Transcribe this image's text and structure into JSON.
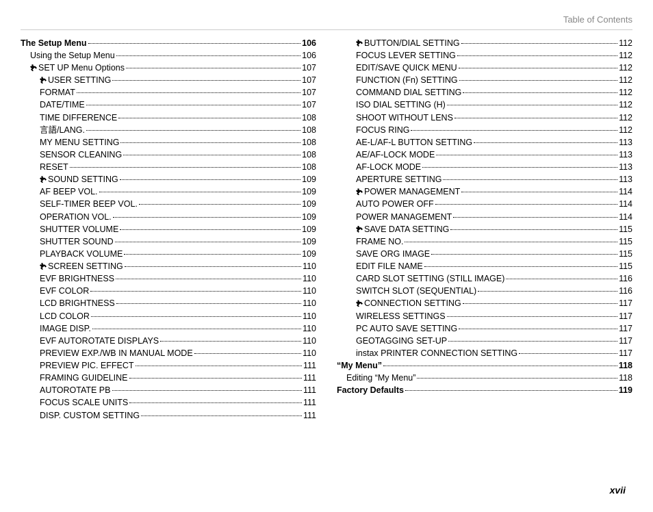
{
  "header": "Table of Contents",
  "footer_page": "xvii",
  "left_col": [
    {
      "label": "The Setup Menu",
      "page": 106,
      "bold": true,
      "indent": 0,
      "icon": false
    },
    {
      "label": "Using the Setup Menu",
      "page": 106,
      "bold": false,
      "indent": 1,
      "icon": false
    },
    {
      "label": "SET UP Menu Options",
      "page": 107,
      "bold": false,
      "indent": 1,
      "icon": true
    },
    {
      "label": "USER SETTING",
      "page": 107,
      "bold": false,
      "indent": 2,
      "icon": true
    },
    {
      "label": "FORMAT",
      "page": 107,
      "bold": false,
      "indent": 2,
      "icon": false
    },
    {
      "label": "DATE/TIME",
      "page": 107,
      "bold": false,
      "indent": 2,
      "icon": false
    },
    {
      "label": "TIME DIFFERENCE",
      "page": 108,
      "bold": false,
      "indent": 2,
      "icon": false
    },
    {
      "label": "言語/LANG.",
      "page": 108,
      "bold": false,
      "indent": 2,
      "icon": false
    },
    {
      "label": "MY MENU SETTING",
      "page": 108,
      "bold": false,
      "indent": 2,
      "icon": false
    },
    {
      "label": "SENSOR CLEANING",
      "page": 108,
      "bold": false,
      "indent": 2,
      "icon": false
    },
    {
      "label": "RESET",
      "page": 108,
      "bold": false,
      "indent": 2,
      "icon": false
    },
    {
      "label": "SOUND SETTING",
      "page": 109,
      "bold": false,
      "indent": 2,
      "icon": true
    },
    {
      "label": "AF BEEP VOL.",
      "page": 109,
      "bold": false,
      "indent": 2,
      "icon": false
    },
    {
      "label": "SELF-TIMER BEEP VOL.",
      "page": 109,
      "bold": false,
      "indent": 2,
      "icon": false
    },
    {
      "label": "OPERATION VOL.",
      "page": 109,
      "bold": false,
      "indent": 2,
      "icon": false
    },
    {
      "label": "SHUTTER VOLUME",
      "page": 109,
      "bold": false,
      "indent": 2,
      "icon": false
    },
    {
      "label": "SHUTTER SOUND",
      "page": 109,
      "bold": false,
      "indent": 2,
      "icon": false
    },
    {
      "label": "PLAYBACK VOLUME",
      "page": 109,
      "bold": false,
      "indent": 2,
      "icon": false
    },
    {
      "label": "SCREEN SETTING",
      "page": 110,
      "bold": false,
      "indent": 2,
      "icon": true
    },
    {
      "label": "EVF BRIGHTNESS",
      "page": 110,
      "bold": false,
      "indent": 2,
      "icon": false
    },
    {
      "label": "EVF COLOR",
      "page": 110,
      "bold": false,
      "indent": 2,
      "icon": false
    },
    {
      "label": "LCD BRIGHTNESS",
      "page": 110,
      "bold": false,
      "indent": 2,
      "icon": false
    },
    {
      "label": "LCD COLOR",
      "page": 110,
      "bold": false,
      "indent": 2,
      "icon": false
    },
    {
      "label": "IMAGE DISP.",
      "page": 110,
      "bold": false,
      "indent": 2,
      "icon": false
    },
    {
      "label": "EVF AUTOROTATE DISPLAYS",
      "page": 110,
      "bold": false,
      "indent": 2,
      "icon": false
    },
    {
      "label": "PREVIEW EXP./WB IN MANUAL MODE",
      "page": 110,
      "bold": false,
      "indent": 2,
      "icon": false
    },
    {
      "label": "PREVIEW PIC. EFFECT",
      "page": 111,
      "bold": false,
      "indent": 2,
      "icon": false
    },
    {
      "label": "FRAMING GUIDELINE",
      "page": 111,
      "bold": false,
      "indent": 2,
      "icon": false
    },
    {
      "label": "AUTOROTATE PB",
      "page": 111,
      "bold": false,
      "indent": 2,
      "icon": false
    },
    {
      "label": "FOCUS SCALE UNITS",
      "page": 111,
      "bold": false,
      "indent": 2,
      "icon": false
    },
    {
      "label": "DISP. CUSTOM SETTING",
      "page": 111,
      "bold": false,
      "indent": 2,
      "icon": false
    }
  ],
  "right_col": [
    {
      "label": "BUTTON/DIAL SETTING",
      "page": 112,
      "bold": false,
      "indent": 2,
      "icon": true
    },
    {
      "label": "FOCUS LEVER SETTING",
      "page": 112,
      "bold": false,
      "indent": 2,
      "icon": false
    },
    {
      "label": "EDIT/SAVE QUICK MENU",
      "page": 112,
      "bold": false,
      "indent": 2,
      "icon": false
    },
    {
      "label": "FUNCTION (Fn) SETTING",
      "page": 112,
      "bold": false,
      "indent": 2,
      "icon": false
    },
    {
      "label": "COMMAND DIAL SETTING",
      "page": 112,
      "bold": false,
      "indent": 2,
      "icon": false
    },
    {
      "label": "ISO DIAL SETTING (H)",
      "page": 112,
      "bold": false,
      "indent": 2,
      "icon": false
    },
    {
      "label": "SHOOT WITHOUT LENS",
      "page": 112,
      "bold": false,
      "indent": 2,
      "icon": false
    },
    {
      "label": "FOCUS RING",
      "page": 112,
      "bold": false,
      "indent": 2,
      "icon": false
    },
    {
      "label": "AE-L/AF-L BUTTON SETTING",
      "page": 113,
      "bold": false,
      "indent": 2,
      "icon": false
    },
    {
      "label": "AE/AF-LOCK MODE",
      "page": 113,
      "bold": false,
      "indent": 2,
      "icon": false
    },
    {
      "label": "AF-LOCK MODE",
      "page": 113,
      "bold": false,
      "indent": 2,
      "icon": false
    },
    {
      "label": "APERTURE SETTING",
      "page": 113,
      "bold": false,
      "indent": 2,
      "icon": false
    },
    {
      "label": "POWER MANAGEMENT",
      "page": 114,
      "bold": false,
      "indent": 2,
      "icon": true
    },
    {
      "label": "AUTO POWER OFF",
      "page": 114,
      "bold": false,
      "indent": 2,
      "icon": false
    },
    {
      "label": "POWER MANAGEMENT",
      "page": 114,
      "bold": false,
      "indent": 2,
      "icon": false
    },
    {
      "label": "SAVE DATA SETTING",
      "page": 115,
      "bold": false,
      "indent": 2,
      "icon": true
    },
    {
      "label": "FRAME NO.",
      "page": 115,
      "bold": false,
      "indent": 2,
      "icon": false
    },
    {
      "label": "SAVE ORG IMAGE",
      "page": 115,
      "bold": false,
      "indent": 2,
      "icon": false
    },
    {
      "label": "EDIT FILE NAME",
      "page": 115,
      "bold": false,
      "indent": 2,
      "icon": false
    },
    {
      "label": "CARD SLOT SETTING (STILL IMAGE)",
      "page": 116,
      "bold": false,
      "indent": 2,
      "icon": false
    },
    {
      "label": "SWITCH SLOT (SEQUENTIAL)",
      "page": 116,
      "bold": false,
      "indent": 2,
      "icon": false
    },
    {
      "label": "CONNECTION SETTING",
      "page": 117,
      "bold": false,
      "indent": 2,
      "icon": true
    },
    {
      "label": "WIRELESS SETTINGS",
      "page": 117,
      "bold": false,
      "indent": 2,
      "icon": false
    },
    {
      "label": "PC AUTO SAVE SETTING",
      "page": 117,
      "bold": false,
      "indent": 2,
      "icon": false
    },
    {
      "label": "GEOTAGGING SET-UP",
      "page": 117,
      "bold": false,
      "indent": 2,
      "icon": false
    },
    {
      "label": "instax PRINTER CONNECTION SETTING",
      "page": 117,
      "bold": false,
      "indent": 2,
      "icon": false
    },
    {
      "label": "“My Menu”",
      "page": 118,
      "bold": true,
      "indent": 0,
      "icon": false
    },
    {
      "label": "Editing “My Menu”",
      "page": 118,
      "bold": false,
      "indent": 1,
      "icon": false
    },
    {
      "label": "Factory Defaults",
      "page": 119,
      "bold": true,
      "indent": 0,
      "icon": false
    }
  ]
}
